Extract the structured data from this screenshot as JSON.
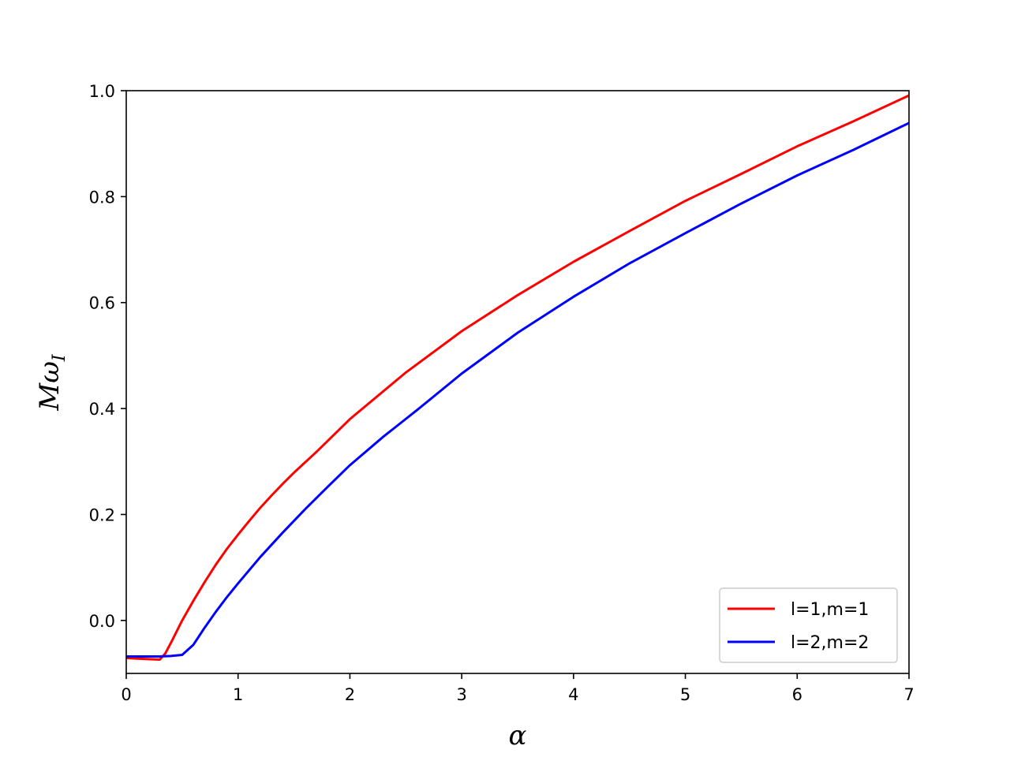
{
  "chart_data": {
    "type": "line",
    "xlabel": "α",
    "ylabel_main": "Mω",
    "ylabel_sub": "I",
    "xlim": [
      0,
      7
    ],
    "ylim": [
      -0.1,
      1.0
    ],
    "x_ticks": [
      0,
      1,
      2,
      3,
      4,
      5,
      6,
      7
    ],
    "x_tick_labels": [
      "0",
      "1",
      "2",
      "3",
      "4",
      "5",
      "6",
      "7"
    ],
    "y_ticks": [
      0.0,
      0.2,
      0.4,
      0.6,
      0.8,
      1.0
    ],
    "y_tick_labels": [
      "0.0",
      "0.2",
      "0.4",
      "0.6",
      "0.8",
      "1.0"
    ],
    "grid": false,
    "legend_position": "bottom-right",
    "series": [
      {
        "name": "l=1,m=1",
        "color": "#ff0000",
        "x": [
          0,
          0.1,
          0.2,
          0.3,
          0.35,
          0.4,
          0.5,
          0.6,
          0.7,
          0.8,
          0.9,
          1.0,
          1.1,
          1.2,
          1.3,
          1.4,
          1.5,
          1.7,
          2.0,
          2.5,
          3.0,
          3.5,
          4.0,
          4.5,
          5.0,
          5.5,
          6.0,
          6.5,
          7.0
        ],
        "y": [
          -0.071,
          -0.072,
          -0.073,
          -0.074,
          -0.062,
          -0.042,
          0.0,
          0.037,
          0.072,
          0.105,
          0.135,
          0.162,
          0.188,
          0.213,
          0.236,
          0.258,
          0.279,
          0.318,
          0.38,
          0.468,
          0.546,
          0.614,
          0.677,
          0.735,
          0.792,
          0.843,
          0.895,
          0.942,
          0.991
        ]
      },
      {
        "name": "l=2,m=2",
        "color": "#0000ff",
        "x": [
          0,
          0.1,
          0.2,
          0.3,
          0.4,
          0.5,
          0.6,
          0.7,
          0.8,
          0.9,
          1.0,
          1.2,
          1.4,
          1.6,
          1.8,
          2.0,
          2.3,
          2.6,
          3.0,
          3.5,
          4.0,
          4.5,
          5.0,
          5.5,
          6.0,
          6.5,
          7.0
        ],
        "y": [
          -0.068,
          -0.068,
          -0.068,
          -0.068,
          -0.067,
          -0.065,
          -0.046,
          -0.014,
          0.016,
          0.044,
          0.07,
          0.12,
          0.166,
          0.21,
          0.252,
          0.293,
          0.347,
          0.397,
          0.466,
          0.543,
          0.611,
          0.674,
          0.731,
          0.787,
          0.84,
          0.888,
          0.939
        ]
      }
    ]
  }
}
